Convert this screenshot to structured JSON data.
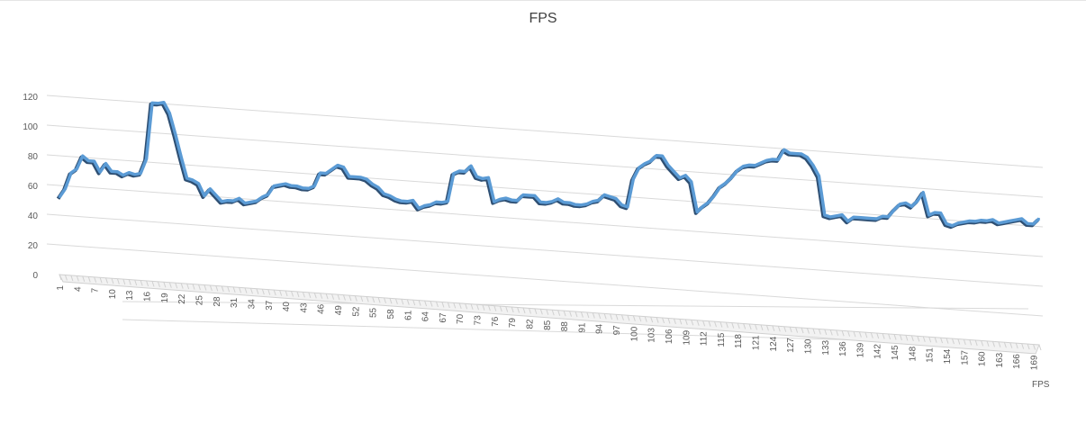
{
  "chart_data": {
    "type": "line",
    "title": "FPS",
    "xlabel": "",
    "ylabel": "",
    "depth_axis_label": "FPS",
    "ylim": [
      0,
      120
    ],
    "y_ticks": [
      0,
      20,
      40,
      60,
      80,
      100,
      120
    ],
    "x_tick_step": 3,
    "grid": true,
    "legend": "none",
    "series": [
      {
        "name": "FPS",
        "color": "#5b9bd5",
        "values": [
          52,
          58,
          69,
          72,
          81,
          78,
          78,
          71,
          77,
          72,
          72,
          70,
          72,
          71,
          72,
          82,
          120,
          120,
          121,
          114,
          100,
          85,
          71,
          70,
          68,
          60,
          65,
          61,
          57,
          58,
          58,
          60,
          57,
          58,
          59,
          62,
          64,
          70,
          71,
          72,
          71,
          71,
          70,
          70,
          72,
          81,
          81,
          84,
          87,
          86,
          80,
          80,
          80,
          79,
          76,
          74,
          70,
          69,
          67,
          66,
          66,
          67,
          62,
          64,
          65,
          67,
          67,
          68,
          87,
          89,
          89,
          93,
          86,
          85,
          86,
          70,
          72,
          73,
          72,
          72,
          76,
          76,
          76,
          72,
          72,
          73,
          75,
          73,
          73,
          72,
          72,
          73,
          75,
          76,
          80,
          79,
          78,
          74,
          73,
          92,
          100,
          103,
          105,
          109,
          109,
          103,
          99,
          95,
          97,
          93,
          73,
          77,
          80,
          85,
          91,
          94,
          98,
          103,
          106,
          107,
          107,
          109,
          111,
          112,
          112,
          119,
          117,
          117,
          117,
          115,
          110,
          103,
          77,
          76,
          77,
          78,
          74,
          77,
          77,
          77,
          77,
          77,
          79,
          79,
          84,
          88,
          89,
          87,
          91,
          97,
          82,
          84,
          84,
          77,
          76,
          78,
          79,
          80,
          80,
          81,
          81,
          82,
          80,
          81,
          82,
          83,
          84,
          81,
          81,
          85
        ]
      }
    ]
  }
}
